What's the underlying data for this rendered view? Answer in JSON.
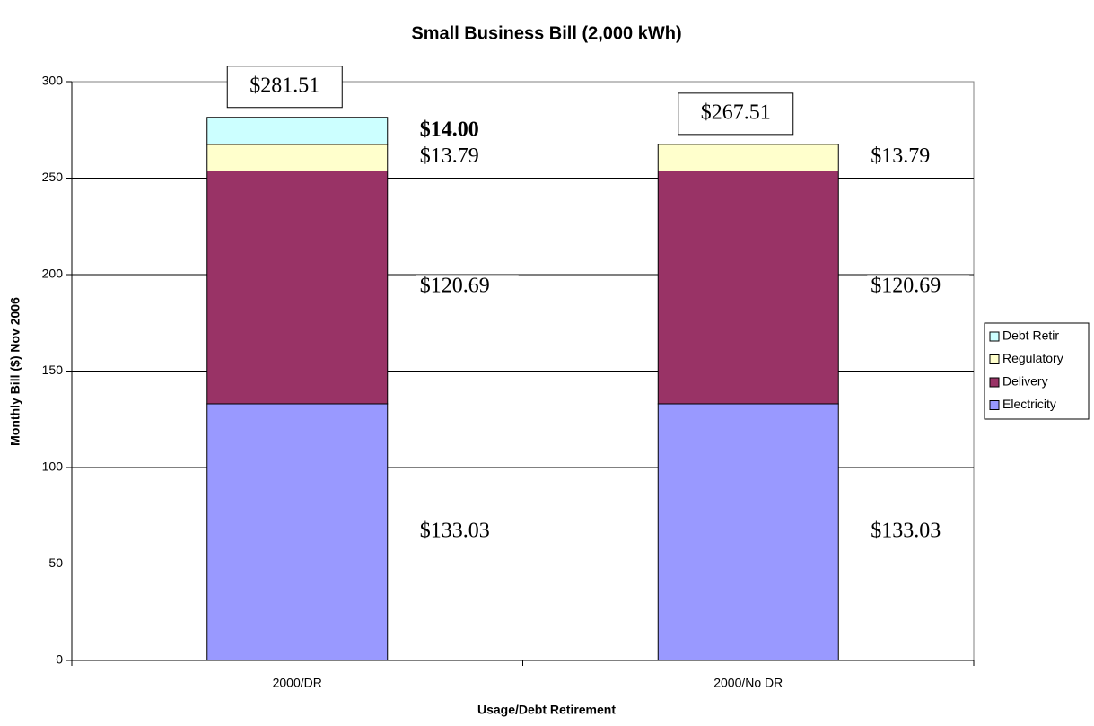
{
  "chart_data": {
    "type": "stacked_bar",
    "title": "Small Business Bill (2,000 kWh)",
    "x_label": "Usage/Debt Retirement",
    "y_label": "Monthly Bill ($) Nov 2006",
    "categories": [
      "2000/DR",
      "2000/No DR"
    ],
    "series": [
      {
        "name": "Electricity",
        "color": "#9999ff",
        "values": [
          133.03,
          133.03
        ],
        "value_labels": [
          "$133.03",
          "$133.03"
        ]
      },
      {
        "name": "Delivery",
        "color": "#993366",
        "values": [
          120.69,
          120.69
        ],
        "value_labels": [
          "$120.69",
          "$120.69"
        ]
      },
      {
        "name": "Regulatory",
        "color": "#ffffcc",
        "values": [
          13.79,
          13.79
        ],
        "value_labels": [
          "$13.79",
          "$13.79"
        ]
      },
      {
        "name": "Debt Retir",
        "color": "#ccffff",
        "values": [
          14.0,
          0
        ],
        "value_labels": [
          "$14.00",
          null
        ]
      }
    ],
    "totals": [
      281.51,
      267.51
    ],
    "total_labels": [
      "$281.51",
      "$267.51"
    ],
    "ylim": [
      0,
      300
    ],
    "yticks": [
      0,
      50,
      100,
      150,
      200,
      250,
      300
    ],
    "grid": true,
    "legend": "right"
  }
}
